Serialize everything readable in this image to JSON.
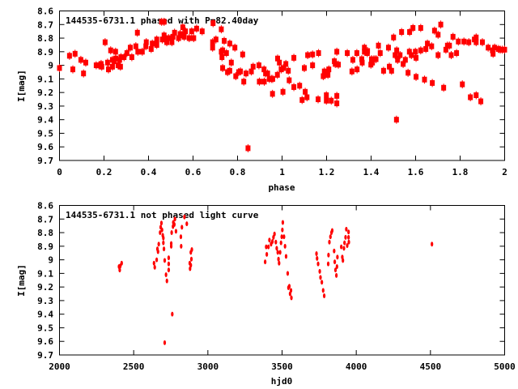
{
  "chart_data": [
    {
      "type": "scatter",
      "title": "144535-6731.1 phased with P=82.40day",
      "xlabel": "phase",
      "ylabel": "I[mag]",
      "xlim": [
        0,
        2
      ],
      "ylim": [
        8.6,
        9.7
      ],
      "y_inverted": true,
      "xticks": [
        "0",
        "0.2",
        "0.4",
        "0.6",
        "0.8",
        "1",
        "1.2",
        "1.4",
        "1.6",
        "1.8",
        "2"
      ],
      "xtick_values": [
        0,
        0.2,
        0.4,
        0.6,
        0.8,
        1,
        1.2,
        1.4,
        1.6,
        1.8,
        2
      ],
      "yticks": [
        "8.6",
        "8.7",
        "8.8",
        "8.9",
        "9",
        "9.1",
        "9.2",
        "9.3",
        "9.4",
        "9.5",
        "9.6",
        "9.7"
      ],
      "ytick_values": [
        8.6,
        8.7,
        8.8,
        8.9,
        9.0,
        9.1,
        9.2,
        9.3,
        9.4,
        9.5,
        9.6,
        9.7
      ],
      "marker": "square",
      "color": "#ff0000",
      "points": [
        [
          0.0,
          9.02
        ],
        [
          0.045,
          8.93
        ],
        [
          0.06,
          9.03
        ],
        [
          0.07,
          8.915
        ],
        [
          0.096,
          8.96
        ],
        [
          0.108,
          9.06
        ],
        [
          0.118,
          8.98
        ],
        [
          0.165,
          9.0
        ],
        [
          0.177,
          9.0
        ],
        [
          0.187,
          8.99
        ],
        [
          0.19,
          9.01
        ],
        [
          0.205,
          8.83
        ],
        [
          0.216,
          8.98
        ],
        [
          0.22,
          9.03
        ],
        [
          0.23,
          8.89
        ],
        [
          0.238,
          9.01
        ],
        [
          0.238,
          8.96
        ],
        [
          0.246,
          8.97
        ],
        [
          0.252,
          8.9
        ],
        [
          0.253,
          8.95
        ],
        [
          0.263,
          9.0
        ],
        [
          0.27,
          8.96
        ],
        [
          0.274,
          9.01
        ],
        [
          0.276,
          8.94
        ],
        [
          0.29,
          8.94
        ],
        [
          0.303,
          8.91
        ],
        [
          0.318,
          8.87
        ],
        [
          0.325,
          8.94
        ],
        [
          0.343,
          8.86
        ],
        [
          0.35,
          8.76
        ],
        [
          0.352,
          8.9
        ],
        [
          0.372,
          8.9
        ],
        [
          0.388,
          8.86
        ],
        [
          0.39,
          8.83
        ],
        [
          0.412,
          8.88
        ],
        [
          0.417,
          8.84
        ],
        [
          0.437,
          8.85
        ],
        [
          0.437,
          8.81
        ],
        [
          0.459,
          8.68
        ],
        [
          0.462,
          8.81
        ],
        [
          0.47,
          8.68
        ],
        [
          0.47,
          8.78
        ],
        [
          0.478,
          8.81
        ],
        [
          0.482,
          8.83
        ],
        [
          0.49,
          8.8
        ],
        [
          0.5,
          8.8
        ],
        [
          0.505,
          8.83
        ],
        [
          0.51,
          8.79
        ],
        [
          0.517,
          8.76
        ],
        [
          0.535,
          8.8
        ],
        [
          0.542,
          8.77
        ],
        [
          0.554,
          8.72
        ],
        [
          0.554,
          8.78
        ],
        [
          0.56,
          8.79
        ],
        [
          0.566,
          8.75
        ],
        [
          0.583,
          8.8
        ],
        [
          0.594,
          8.75
        ],
        [
          0.603,
          8.8
        ],
        [
          0.616,
          8.73
        ],
        [
          0.641,
          8.75
        ],
        [
          0.69,
          8.69
        ],
        [
          0.688,
          8.83
        ],
        [
          0.688,
          8.87
        ],
        [
          0.703,
          8.81
        ],
        [
          0.727,
          8.735
        ],
        [
          0.727,
          8.9
        ],
        [
          0.73,
          8.94
        ],
        [
          0.733,
          8.89
        ],
        [
          0.733,
          9.02
        ],
        [
          0.74,
          8.82
        ],
        [
          0.75,
          8.91
        ],
        [
          0.755,
          9.05
        ],
        [
          0.765,
          9.04
        ],
        [
          0.765,
          8.84
        ],
        [
          0.772,
          8.98
        ],
        [
          0.788,
          8.87
        ],
        [
          0.792,
          9.08
        ],
        [
          0.805,
          9.05
        ],
        [
          0.813,
          9.045
        ],
        [
          0.823,
          8.92
        ],
        [
          0.828,
          9.12
        ],
        [
          0.838,
          9.06
        ],
        [
          0.847,
          9.61
        ],
        [
          0.862,
          9.045
        ],
        [
          0.87,
          9.01
        ],
        [
          0.896,
          9.0
        ],
        [
          0.898,
          9.12
        ],
        [
          0.919,
          9.03
        ],
        [
          0.92,
          9.12
        ],
        [
          0.926,
          9.06
        ],
        [
          0.935,
          9.06
        ],
        [
          0.943,
          9.1
        ],
        [
          0.952,
          9.1
        ],
        [
          0.958,
          9.1
        ],
        [
          0.957,
          9.21
        ],
        [
          0.979,
          9.07
        ],
        [
          0.98,
          8.95
        ],
        [
          0.988,
          8.98
        ],
        [
          0.996,
          9.03
        ],
        [
          1.004,
          9.195
        ],
        [
          1.006,
          9.02
        ],
        [
          1.017,
          8.99
        ],
        [
          1.028,
          9.04
        ],
        [
          1.032,
          9.11
        ],
        [
          1.053,
          8.945
        ],
        [
          1.053,
          9.16
        ],
        [
          1.079,
          9.15
        ],
        [
          1.09,
          9.255
        ],
        [
          1.1,
          9.02
        ],
        [
          1.104,
          9.195
        ],
        [
          1.112,
          9.235
        ],
        [
          1.115,
          8.925
        ],
        [
          1.137,
          8.92
        ],
        [
          1.137,
          9.0
        ],
        [
          1.162,
          9.25
        ],
        [
          1.164,
          8.91
        ],
        [
          1.185,
          9.08
        ],
        [
          1.19,
          9.045
        ],
        [
          1.194,
          9.07
        ],
        [
          1.199,
          9.22
        ],
        [
          1.199,
          9.26
        ],
        [
          1.206,
          9.07
        ],
        [
          1.21,
          9.03
        ],
        [
          1.221,
          9.26
        ],
        [
          1.235,
          8.97
        ],
        [
          1.239,
          8.99
        ],
        [
          1.246,
          9.225
        ],
        [
          1.246,
          9.28
        ],
        [
          1.246,
          8.9
        ],
        [
          1.253,
          8.995
        ],
        [
          1.293,
          8.91
        ],
        [
          1.314,
          9.045
        ],
        [
          1.318,
          8.96
        ],
        [
          1.336,
          8.91
        ],
        [
          1.337,
          9.03
        ],
        [
          1.358,
          8.955
        ],
        [
          1.36,
          8.98
        ],
        [
          1.37,
          8.87
        ],
        [
          1.37,
          8.9
        ],
        [
          1.383,
          8.91
        ],
        [
          1.384,
          8.895
        ],
        [
          1.399,
          8.995
        ],
        [
          1.402,
          8.955
        ],
        [
          1.406,
          8.98
        ],
        [
          1.413,
          8.955
        ],
        [
          1.422,
          8.955
        ],
        [
          1.433,
          8.855
        ],
        [
          1.441,
          8.91
        ],
        [
          1.456,
          9.04
        ],
        [
          1.478,
          8.87
        ],
        [
          1.482,
          9.01
        ],
        [
          1.492,
          9.04
        ],
        [
          1.501,
          8.795
        ],
        [
          1.508,
          8.925
        ],
        [
          1.514,
          9.4
        ],
        [
          1.515,
          8.89
        ],
        [
          1.519,
          8.96
        ],
        [
          1.53,
          8.925
        ],
        [
          1.537,
          8.755
        ],
        [
          1.544,
          8.99
        ],
        [
          1.554,
          8.96
        ],
        [
          1.566,
          9.055
        ],
        [
          1.572,
          8.9
        ],
        [
          1.573,
          8.755
        ],
        [
          1.581,
          8.925
        ],
        [
          1.588,
          8.725
        ],
        [
          1.599,
          8.9
        ],
        [
          1.602,
          8.945
        ],
        [
          1.602,
          9.085
        ],
        [
          1.623,
          8.89
        ],
        [
          1.623,
          8.725
        ],
        [
          1.64,
          9.105
        ],
        [
          1.646,
          8.88
        ],
        [
          1.653,
          8.84
        ],
        [
          1.672,
          8.86
        ],
        [
          1.675,
          9.13
        ],
        [
          1.685,
          8.745
        ],
        [
          1.701,
          8.775
        ],
        [
          1.701,
          8.925
        ],
        [
          1.713,
          8.7
        ],
        [
          1.726,
          9.165
        ],
        [
          1.736,
          8.885
        ],
        [
          1.743,
          8.855
        ],
        [
          1.752,
          8.855
        ],
        [
          1.76,
          8.925
        ],
        [
          1.768,
          8.79
        ],
        [
          1.784,
          8.91
        ],
        [
          1.792,
          8.825
        ],
        [
          1.81,
          9.14
        ],
        [
          1.817,
          8.825
        ],
        [
          1.839,
          8.83
        ],
        [
          1.846,
          9.235
        ],
        [
          1.864,
          8.81
        ],
        [
          1.872,
          9.22
        ],
        [
          1.872,
          8.83
        ],
        [
          1.872,
          8.795
        ],
        [
          1.893,
          9.265
        ],
        [
          1.9,
          8.83
        ],
        [
          1.926,
          8.87
        ],
        [
          1.945,
          8.89
        ],
        [
          1.948,
          8.915
        ],
        [
          1.955,
          8.87
        ],
        [
          1.972,
          8.88
        ],
        [
          1.98,
          8.885
        ],
        [
          1.99,
          8.885
        ],
        [
          2.0,
          8.885
        ]
      ]
    },
    {
      "type": "scatter",
      "title": "144535-6731.1 not phased light curve",
      "xlabel": "hjd0",
      "ylabel": "I[mag]",
      "xlim": [
        2000,
        5000
      ],
      "ylim": [
        8.6,
        9.7
      ],
      "y_inverted": true,
      "xticks": [
        "2000",
        "2500",
        "3000",
        "3500",
        "4000",
        "4500",
        "5000"
      ],
      "xtick_values": [
        2000,
        2500,
        3000,
        3500,
        4000,
        4500,
        5000
      ],
      "yticks": [
        "8.6",
        "8.7",
        "8.8",
        "8.9",
        "9",
        "9.1",
        "9.2",
        "9.3",
        "9.4",
        "9.5",
        "9.6",
        "9.7"
      ],
      "ytick_values": [
        8.6,
        8.7,
        8.8,
        8.9,
        9.0,
        9.1,
        9.2,
        9.3,
        9.4,
        9.5,
        9.6,
        9.7
      ],
      "marker": "ellipse",
      "color": "#ff0000",
      "points": [
        [
          2401,
          9.05
        ],
        [
          2406,
          9.075
        ],
        [
          2419,
          9.025
        ],
        [
          2410,
          9.045
        ],
        [
          2637,
          9.025
        ],
        [
          2642,
          9.055
        ],
        [
          2655,
          9.0
        ],
        [
          2660,
          8.92
        ],
        [
          2664,
          8.94
        ],
        [
          2669,
          8.885
        ],
        [
          2678,
          8.8
        ],
        [
          2682,
          8.76
        ],
        [
          2687,
          8.73
        ],
        [
          2691,
          8.78
        ],
        [
          2696,
          8.82
        ],
        [
          2700,
          8.84
        ],
        [
          2700,
          8.875
        ],
        [
          2704,
          8.92
        ],
        [
          2709,
          9.005
        ],
        [
          2709,
          9.61
        ],
        [
          2718,
          9.11
        ],
        [
          2724,
          9.155
        ],
        [
          2736,
          8.985
        ],
        [
          2736,
          9.03
        ],
        [
          2736,
          9.075
        ],
        [
          2753,
          8.88
        ],
        [
          2753,
          8.9
        ],
        [
          2756,
          8.8
        ],
        [
          2760,
          9.4
        ],
        [
          2765,
          8.755
        ],
        [
          2767,
          8.725
        ],
        [
          2774,
          8.74
        ],
        [
          2778,
          8.7
        ],
        [
          2785,
          8.79
        ],
        [
          2825,
          8.76
        ],
        [
          2818,
          8.83
        ],
        [
          2820,
          8.9
        ],
        [
          2842,
          8.685
        ],
        [
          2858,
          8.735
        ],
        [
          2878,
          9.025
        ],
        [
          2880,
          9.065
        ],
        [
          2885,
          8.945
        ],
        [
          2889,
          8.995
        ],
        [
          2892,
          8.925
        ],
        [
          2885,
          9.04
        ],
        [
          3386,
          9.015
        ],
        [
          3393,
          8.905
        ],
        [
          3397,
          8.96
        ],
        [
          3408,
          8.905
        ],
        [
          3415,
          8.855
        ],
        [
          3426,
          8.885
        ],
        [
          3435,
          8.865
        ],
        [
          3442,
          8.835
        ],
        [
          3449,
          8.81
        ],
        [
          3458,
          8.87
        ],
        [
          3464,
          8.915
        ],
        [
          3471,
          8.945
        ],
        [
          3476,
          8.995
        ],
        [
          3480,
          9.025
        ],
        [
          3487,
          8.945
        ],
        [
          3493,
          8.875
        ],
        [
          3498,
          8.83
        ],
        [
          3502,
          8.78
        ],
        [
          3505,
          8.725
        ],
        [
          3513,
          8.83
        ],
        [
          3520,
          8.9
        ],
        [
          3527,
          8.975
        ],
        [
          3538,
          9.1
        ],
        [
          3543,
          9.205
        ],
        [
          3549,
          9.195
        ],
        [
          3554,
          9.25
        ],
        [
          3560,
          9.225
        ],
        [
          3563,
          9.28
        ],
        [
          3732,
          8.955
        ],
        [
          3736,
          8.99
        ],
        [
          3743,
          9.03
        ],
        [
          3754,
          9.085
        ],
        [
          3759,
          9.13
        ],
        [
          3768,
          9.165
        ],
        [
          3777,
          9.225
        ],
        [
          3784,
          9.265
        ],
        [
          3811,
          9.03
        ],
        [
          3813,
          8.965
        ],
        [
          3819,
          8.87
        ],
        [
          3826,
          8.83
        ],
        [
          3833,
          8.8
        ],
        [
          3838,
          8.785
        ],
        [
          3851,
          8.935
        ],
        [
          3855,
          9.015
        ],
        [
          3860,
          9.075
        ],
        [
          3866,
          9.115
        ],
        [
          3873,
          8.98
        ],
        [
          3870,
          9.05
        ],
        [
          3899,
          8.905
        ],
        [
          3906,
          8.98
        ],
        [
          3910,
          9.005
        ],
        [
          3917,
          8.915
        ],
        [
          3921,
          8.875
        ],
        [
          3928,
          8.835
        ],
        [
          3933,
          8.775
        ],
        [
          3939,
          8.895
        ],
        [
          3948,
          8.795
        ],
        [
          3950,
          8.87
        ],
        [
          3948,
          8.835
        ],
        [
          4510,
          8.885
        ]
      ]
    }
  ]
}
